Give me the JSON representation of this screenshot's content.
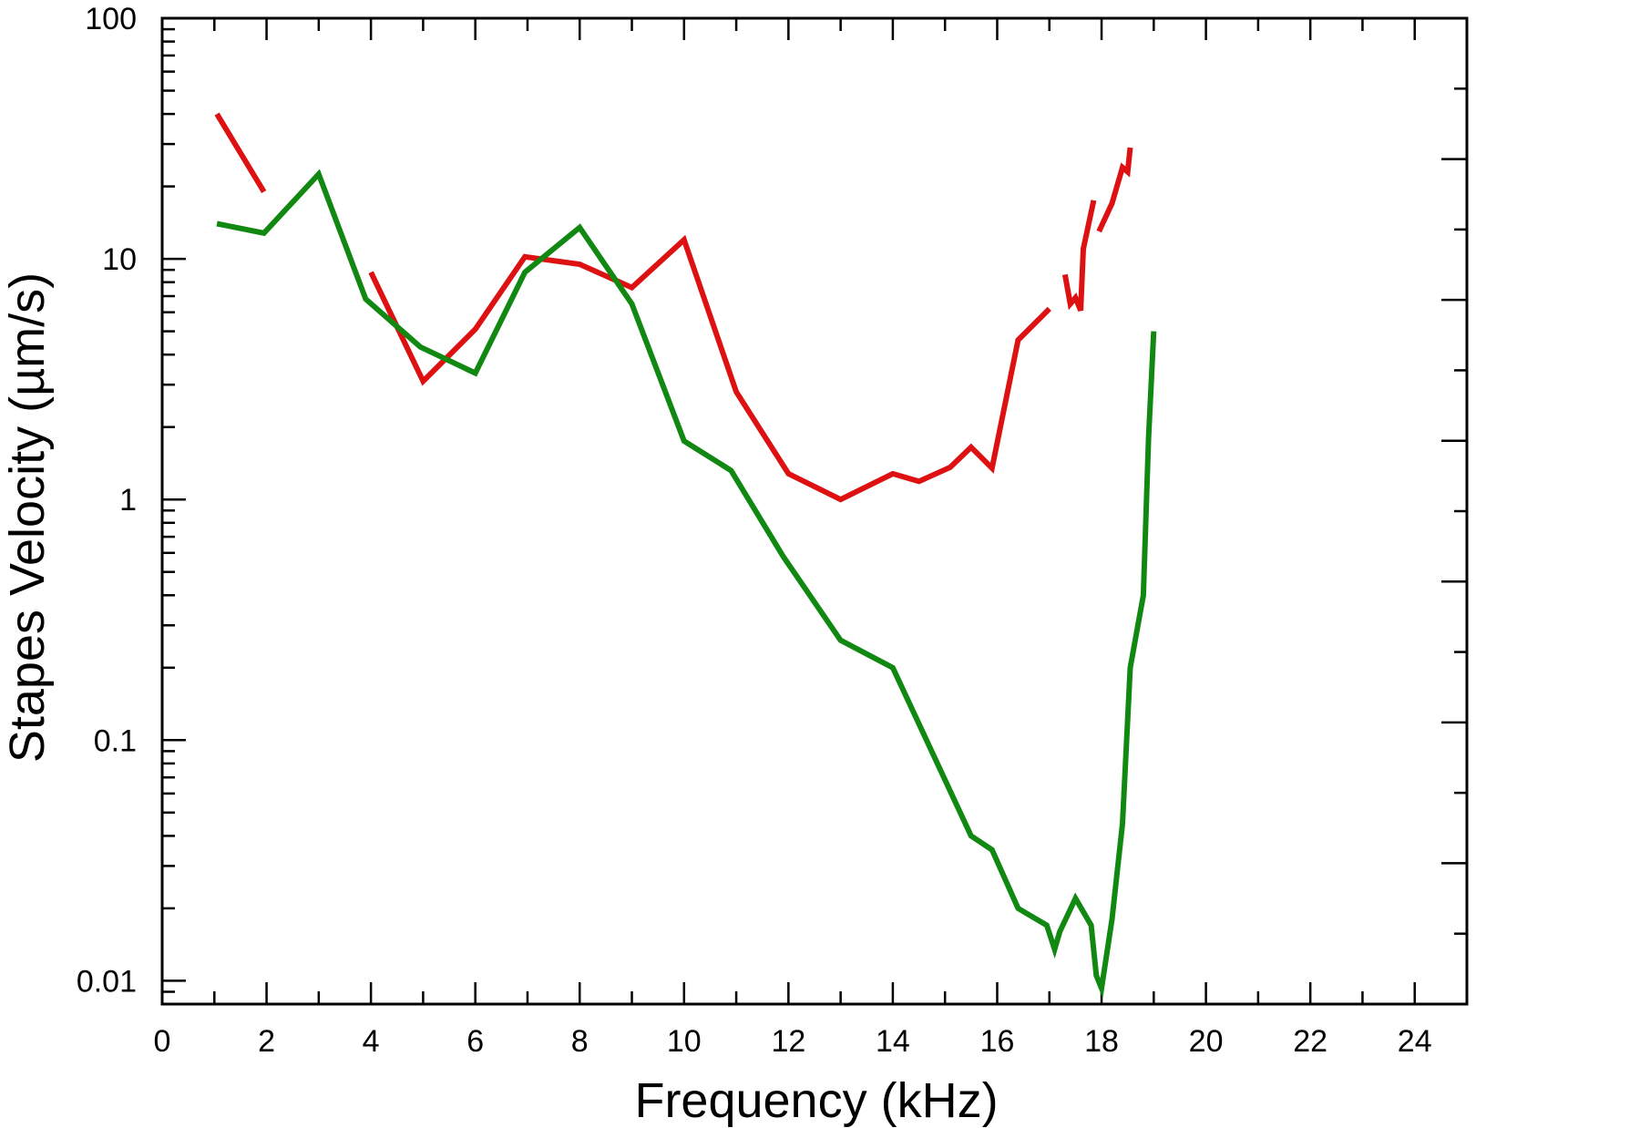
{
  "chart_data": {
    "type": "line",
    "xlabel": "Frequency (kHz)",
    "ylabel": "Stapes Velocity (µm/s)",
    "xlim": [
      0,
      25
    ],
    "ylim": [
      0.008,
      100
    ],
    "yscale": "log",
    "x_ticks": [
      0,
      2,
      4,
      6,
      8,
      10,
      12,
      14,
      16,
      18,
      20,
      22,
      24
    ],
    "x_tick_labels": [
      "0",
      "2",
      "4",
      "6",
      "8",
      "10",
      "12",
      "14",
      "16",
      "18",
      "20",
      "22",
      "24"
    ],
    "y_ticks": [
      0.01,
      0.1,
      1,
      10,
      100
    ],
    "y_tick_labels": [
      "0.01",
      "0.1",
      "1",
      "10",
      "100"
    ],
    "grid": false,
    "legend": "none",
    "series": [
      {
        "color": "#dd1111",
        "segments": [
          [
            [
              1.05,
              40
            ],
            [
              1.95,
              19
            ]
          ],
          [
            [
              4.0,
              8.8
            ],
            [
              5.0,
              3.1
            ],
            [
              6.0,
              5.1
            ],
            [
              6.95,
              10.2
            ],
            [
              8.0,
              9.5
            ],
            [
              9.0,
              7.6
            ],
            [
              10.0,
              12.0
            ],
            [
              11.0,
              2.8
            ],
            [
              12.0,
              1.28
            ],
            [
              13.0,
              1.0
            ],
            [
              14.0,
              1.28
            ],
            [
              14.5,
              1.19
            ],
            [
              15.1,
              1.36
            ],
            [
              15.5,
              1.65
            ],
            [
              15.9,
              1.35
            ],
            [
              16.4,
              4.6
            ],
            [
              17.0,
              6.2
            ]
          ],
          [
            [
              17.3,
              8.6
            ],
            [
              17.4,
              6.5
            ],
            [
              17.5,
              6.9
            ],
            [
              17.6,
              6.1
            ],
            [
              17.65,
              11.0
            ],
            [
              17.85,
              17.5
            ]
          ],
          [
            [
              17.95,
              13.0
            ],
            [
              18.2,
              17.0
            ],
            [
              18.4,
              24.0
            ],
            [
              18.5,
              23.0
            ],
            [
              18.55,
              29.0
            ]
          ]
        ]
      },
      {
        "color": "#118811",
        "segments": [
          [
            [
              1.05,
              14.0
            ],
            [
              1.95,
              12.8
            ],
            [
              3.0,
              22.5
            ],
            [
              3.9,
              6.8
            ],
            [
              4.95,
              4.3
            ],
            [
              6.0,
              3.35
            ],
            [
              6.95,
              8.8
            ],
            [
              8.0,
              13.5
            ],
            [
              9.0,
              6.5
            ],
            [
              10.0,
              1.75
            ],
            [
              10.9,
              1.32
            ],
            [
              11.9,
              0.58
            ],
            [
              13.0,
              0.26
            ],
            [
              14.0,
              0.2
            ],
            [
              15.5,
              0.04
            ],
            [
              15.9,
              0.035
            ],
            [
              16.4,
              0.02
            ],
            [
              16.95,
              0.017
            ],
            [
              17.1,
              0.0135
            ],
            [
              17.2,
              0.016
            ],
            [
              17.5,
              0.022
            ],
            [
              17.8,
              0.017
            ],
            [
              17.9,
              0.0105
            ],
            [
              18.0,
              0.0093
            ],
            [
              18.2,
              0.018
            ],
            [
              18.4,
              0.045
            ],
            [
              18.55,
              0.2
            ],
            [
              18.8,
              0.4
            ],
            [
              18.9,
              1.8
            ],
            [
              19.0,
              5.0
            ]
          ]
        ]
      }
    ]
  }
}
